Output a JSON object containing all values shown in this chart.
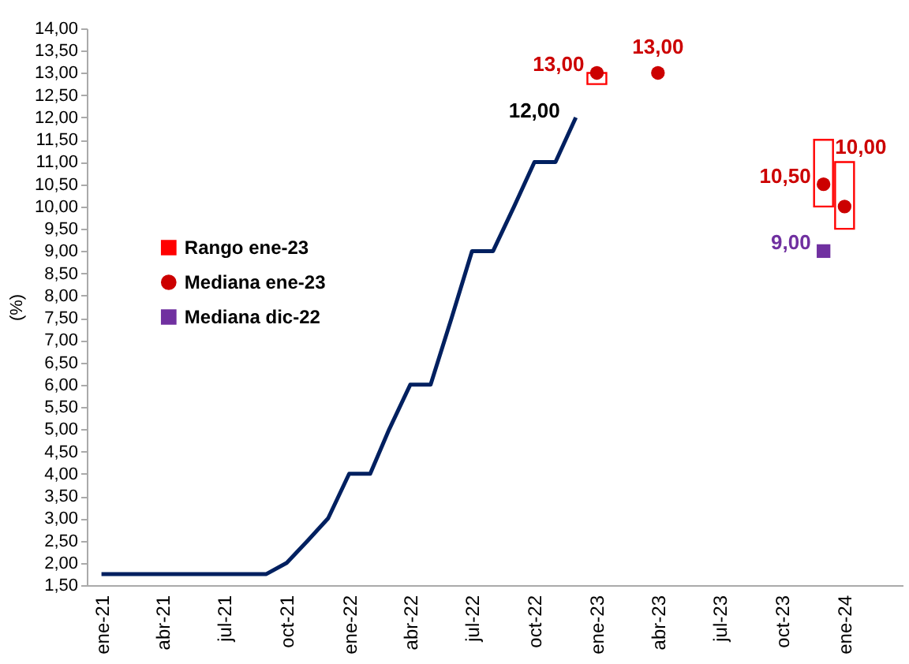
{
  "chart_data": {
    "type": "line",
    "ylabel": "(%)",
    "xlim": [
      "2020-12-22",
      "2024-03-15"
    ],
    "ylim": [
      1.5,
      14
    ],
    "xticks": [
      {
        "value": "2021-01",
        "label": "ene-21"
      },
      {
        "value": "2021-04",
        "label": "abr-21"
      },
      {
        "value": "2021-07",
        "label": "jul-21"
      },
      {
        "value": "2021-10",
        "label": "oct-21"
      },
      {
        "value": "2022-01",
        "label": "ene-22"
      },
      {
        "value": "2022-04",
        "label": "abr-22"
      },
      {
        "value": "2022-07",
        "label": "jul-22"
      },
      {
        "value": "2022-10",
        "label": "oct-22"
      },
      {
        "value": "2023-01",
        "label": "ene-23"
      },
      {
        "value": "2023-04",
        "label": "abr-23"
      },
      {
        "value": "2023-07",
        "label": "jul-23"
      },
      {
        "value": "2023-10",
        "label": "oct-23"
      },
      {
        "value": "2024-01",
        "label": "ene-24"
      }
    ],
    "yticks": [
      {
        "value": 1.5,
        "label": "1,50"
      },
      {
        "value": 2,
        "label": "2,00"
      },
      {
        "value": 2.5,
        "label": "2,50"
      },
      {
        "value": 3,
        "label": "3,00"
      },
      {
        "value": 3.5,
        "label": "3,50"
      },
      {
        "value": 4,
        "label": "4,00"
      },
      {
        "value": 4.5,
        "label": "4,50"
      },
      {
        "value": 5,
        "label": "5,00"
      },
      {
        "value": 5.5,
        "label": "5,50"
      },
      {
        "value": 6,
        "label": "6,00"
      },
      {
        "value": 6.5,
        "label": "6,50"
      },
      {
        "value": 7,
        "label": "7,00"
      },
      {
        "value": 7.5,
        "label": "7,50"
      },
      {
        "value": 8,
        "label": "8,00"
      },
      {
        "value": 8.5,
        "label": "8,50"
      },
      {
        "value": 9,
        "label": "9,00"
      },
      {
        "value": 9.5,
        "label": "9,50"
      },
      {
        "value": 10,
        "label": "10,00"
      },
      {
        "value": 10.5,
        "label": "10,50"
      },
      {
        "value": 11,
        "label": "11,00"
      },
      {
        "value": 11.5,
        "label": "11,50"
      },
      {
        "value": 12,
        "label": "12,00"
      },
      {
        "value": 12.5,
        "label": "12,50"
      },
      {
        "value": 13,
        "label": "13,00"
      },
      {
        "value": 13.5,
        "label": "13,50"
      },
      {
        "value": 14,
        "label": "14,00"
      }
    ],
    "legend": "left",
    "series": [
      {
        "color": "#002060",
        "line_style": "solid",
        "marker": "none",
        "x": [
          "2021-01",
          "2021-02",
          "2021-03",
          "2021-04",
          "2021-05",
          "2021-06",
          "2021-07",
          "2021-08",
          "2021-09",
          "2021-10",
          "2021-11",
          "2021-12",
          "2022-01",
          "2022-02",
          "2022-03",
          "2022-04",
          "2022-05",
          "2022-06",
          "2022-07",
          "2022-08",
          "2022-09",
          "2022-10",
          "2022-11",
          "2022-12"
        ],
        "values": [
          1.75,
          1.75,
          1.75,
          1.75,
          1.75,
          1.75,
          1.75,
          1.75,
          1.75,
          2,
          2.5,
          3,
          4,
          4,
          5,
          6,
          6,
          7.5,
          9,
          9,
          10,
          11,
          11,
          12
        ],
        "value_labels": [
          null,
          null,
          null,
          null,
          null,
          null,
          null,
          null,
          null,
          null,
          null,
          null,
          null,
          null,
          null,
          null,
          null,
          null,
          null,
          null,
          null,
          null,
          null,
          "12,00"
        ]
      },
      {
        "type": "bar",
        "name": "Rango ene-23",
        "color": "#ff0000",
        "x": [
          "2023-01",
          "2023-12",
          "2024-01"
        ],
        "base": [
          12.75,
          10,
          9.5
        ],
        "values": [
          0.25,
          1.5,
          1.5
        ]
      },
      {
        "type": "scatter",
        "name": "Mediana ene-23",
        "color": "#cc0000",
        "marker": "circle",
        "x": [
          "2023-01",
          "2023-04",
          "2023-12",
          "2024-01"
        ],
        "values": [
          13,
          13,
          10.5,
          10
        ],
        "value_labels": [
          "13,00",
          "13,00",
          "10,50",
          "10,00"
        ]
      },
      {
        "type": "scatter",
        "name": "Mediana dic-22",
        "color": "#7030a0",
        "marker": "square",
        "x": [
          "2023-12"
        ],
        "values": [
          9
        ],
        "value_labels": [
          "9,00"
        ]
      }
    ]
  }
}
